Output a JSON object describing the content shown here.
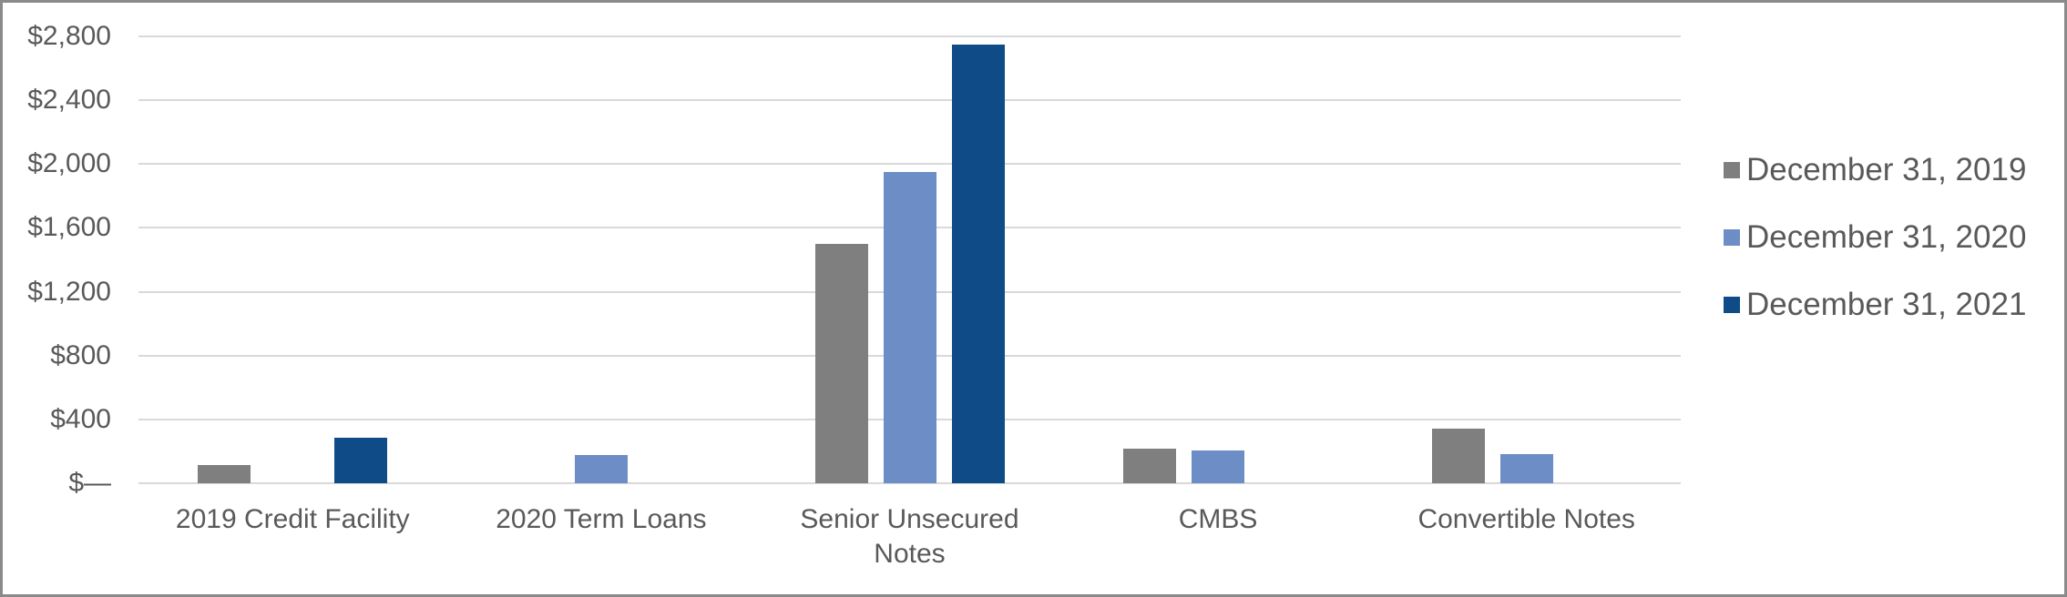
{
  "chart_data": {
    "type": "bar",
    "title": "",
    "xlabel": "",
    "ylabel": "",
    "categories": [
      "2019 Credit Facility",
      "2020 Term Loans",
      "Senior Unsecured\nNotes",
      "CMBS",
      "Convertible Notes"
    ],
    "series": [
      {
        "name": "December 31, 2019",
        "color": "#7F7F7F",
        "values": [
          115,
          0,
          1500,
          215,
          340
        ]
      },
      {
        "name": "December 31, 2020",
        "color": "#6C8DC6",
        "values": [
          0,
          175,
          1950,
          205,
          185
        ]
      },
      {
        "name": "December 31, 2021",
        "color": "#0E4B87",
        "values": [
          285,
          0,
          2750,
          0,
          0
        ]
      }
    ],
    "ylim": [
      0,
      2800
    ],
    "ytick_step": 400,
    "y_ticks": [
      "$—",
      "$400",
      "$800",
      "$1,200",
      "$1,600",
      "$2,000",
      "$2,400",
      "$2,800"
    ],
    "grid": "horizontal",
    "legend_position": "right"
  },
  "colors": {
    "background": "#FFFFFF",
    "border": "#8A8A8A",
    "gridline": "#D9D9D9",
    "axis_text": "#595959"
  }
}
